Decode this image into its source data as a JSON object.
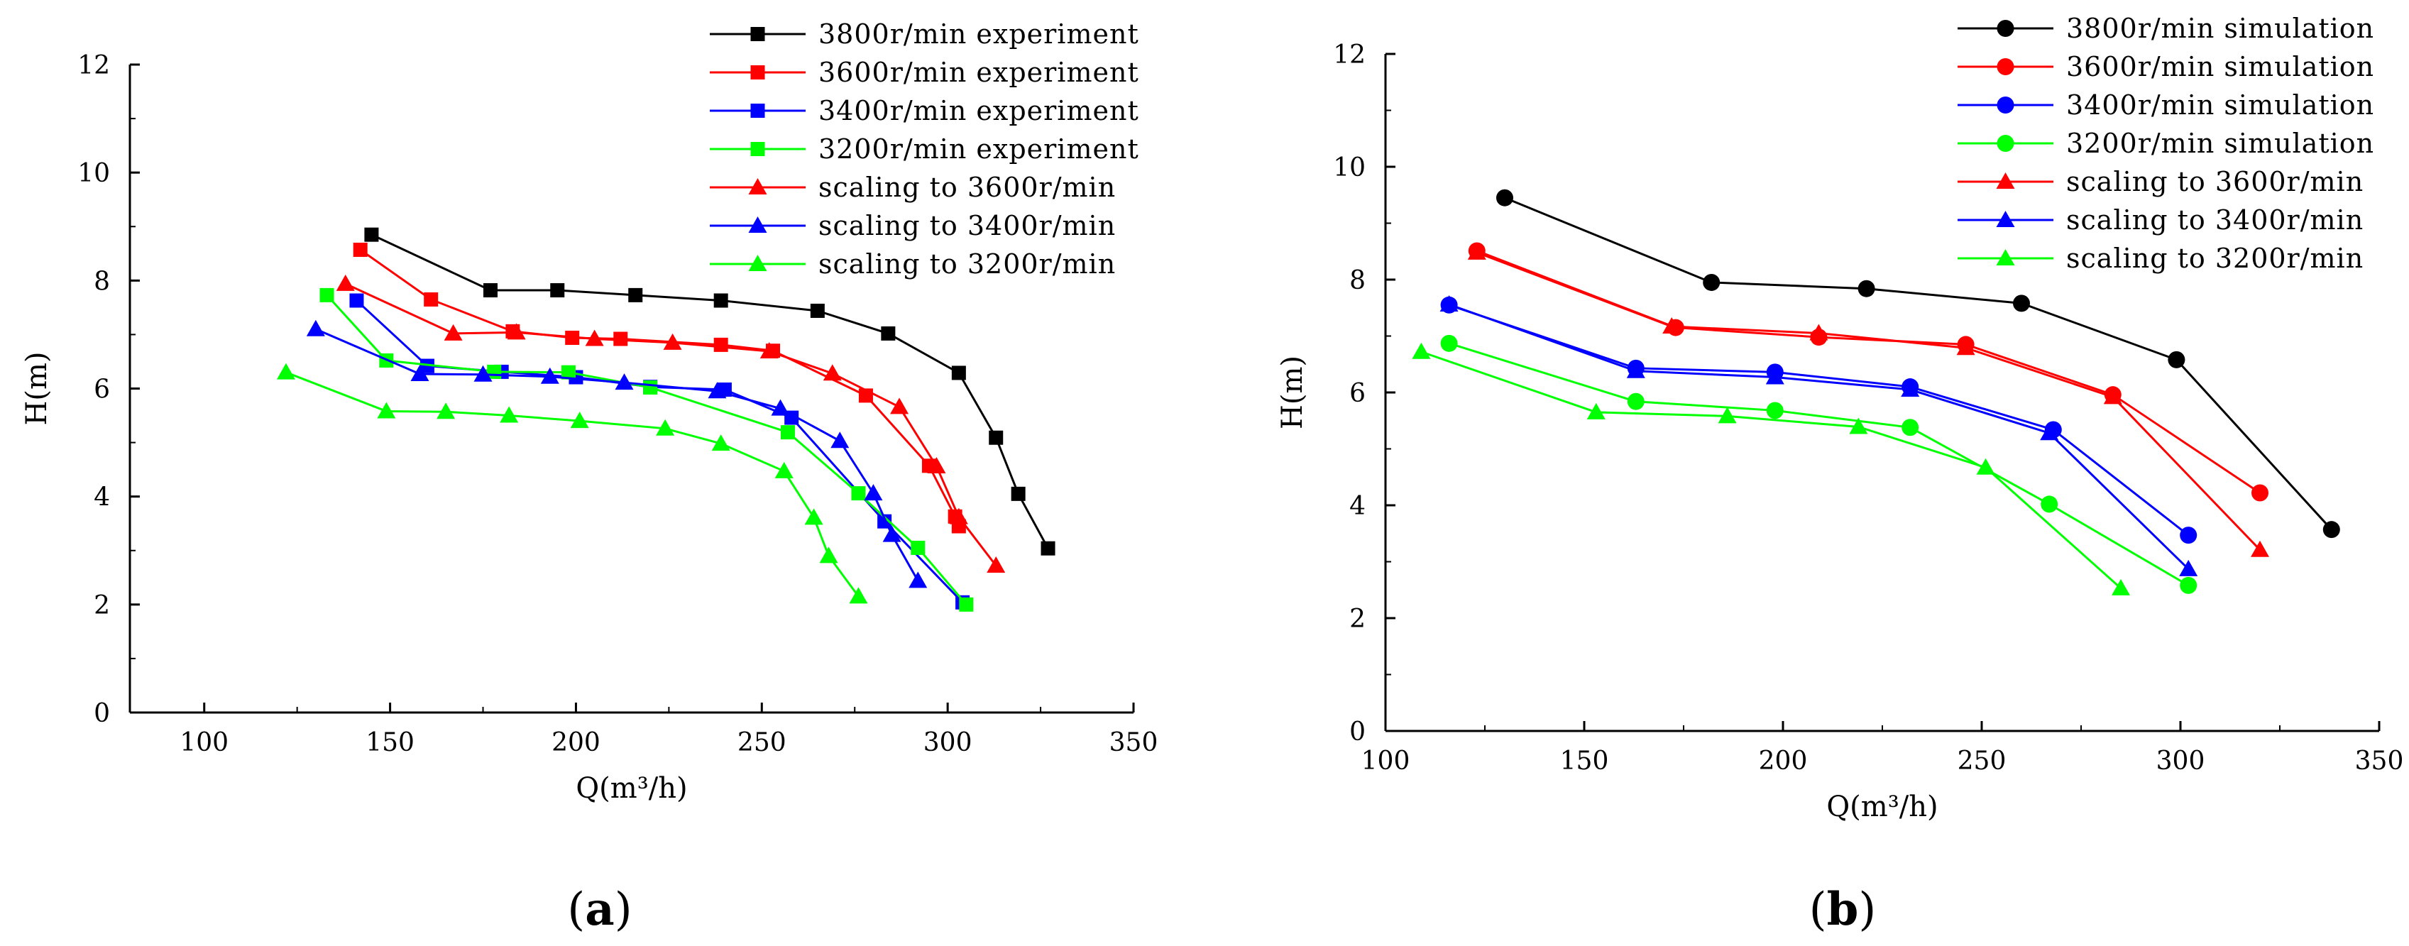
{
  "chart_data": [
    {
      "panel": "(a)",
      "panel_letter": "a",
      "type": "line",
      "xlabel": "Q(m³/h)",
      "ylabel": "H(m)",
      "xlim": [
        80,
        350
      ],
      "ylim": [
        0,
        12
      ],
      "xticks": [
        100,
        150,
        200,
        250,
        300,
        350
      ],
      "yticks": [
        0,
        2,
        4,
        6,
        8,
        10,
        12
      ],
      "legend_position": "top-right",
      "series": [
        {
          "name": "3800r/min experiment",
          "color": "#000000",
          "marker": "square",
          "x": [
            145,
            177,
            195,
            216,
            239,
            265,
            284,
            303,
            313,
            319,
            327
          ],
          "y": [
            8.85,
            7.82,
            7.82,
            7.73,
            7.63,
            7.44,
            7.02,
            6.29,
            5.09,
            4.05,
            3.04
          ]
        },
        {
          "name": "3600r/min experiment",
          "color": "#ff0000",
          "marker": "square",
          "x": [
            142,
            161,
            183,
            199,
            212,
            239,
            253,
            278,
            295,
            302,
            303
          ],
          "y": [
            8.57,
            7.65,
            7.06,
            6.94,
            6.92,
            6.81,
            6.7,
            5.87,
            4.57,
            3.63,
            3.45
          ]
        },
        {
          "name": "3400r/min experiment",
          "color": "#0000ff",
          "marker": "square",
          "x": [
            141,
            160,
            180,
            200,
            220,
            240,
            258,
            283,
            304
          ],
          "y": [
            7.63,
            6.42,
            6.31,
            6.21,
            6.03,
            5.98,
            5.46,
            3.54,
            2.04
          ]
        },
        {
          "name": "3200r/min experiment",
          "color": "#00ff00",
          "marker": "square",
          "x": [
            133,
            149,
            178,
            198,
            220,
            257,
            276,
            292,
            305
          ],
          "y": [
            7.73,
            6.52,
            6.31,
            6.3,
            6.02,
            5.19,
            4.06,
            3.05,
            2.0
          ]
        },
        {
          "name": "scaling to 3600r/min",
          "color": "#ff0000",
          "marker": "triangle",
          "x": [
            138,
            167,
            184,
            205,
            226,
            252,
            269,
            287,
            297,
            303,
            313
          ],
          "y": [
            7.94,
            7.02,
            7.04,
            6.92,
            6.85,
            6.69,
            6.28,
            5.66,
            4.56,
            3.62,
            2.72
          ]
        },
        {
          "name": "scaling to 3400r/min",
          "color": "#0000ff",
          "marker": "triangle",
          "x": [
            130,
            158,
            175,
            193,
            213,
            238,
            255,
            271,
            280,
            285,
            292
          ],
          "y": [
            7.1,
            6.27,
            6.26,
            6.22,
            6.11,
            5.95,
            5.63,
            5.03,
            4.06,
            3.29,
            2.44
          ]
        },
        {
          "name": "scaling to 3200r/min",
          "color": "#00ff00",
          "marker": "triangle",
          "x": [
            122,
            149,
            165,
            182,
            201,
            224,
            239,
            256,
            264,
            268,
            276
          ],
          "y": [
            6.3,
            5.58,
            5.57,
            5.5,
            5.4,
            5.26,
            4.98,
            4.47,
            3.61,
            2.9,
            2.15
          ]
        }
      ]
    },
    {
      "panel": "(b)",
      "panel_letter": "b",
      "type": "line",
      "xlabel": "Q(m³/h)",
      "ylabel": "H(m)",
      "xlim": [
        100,
        350
      ],
      "ylim": [
        0,
        12
      ],
      "xticks": [
        100,
        150,
        200,
        250,
        300,
        350
      ],
      "yticks": [
        0,
        2,
        4,
        6,
        8,
        10,
        12
      ],
      "legend_position": "top-right",
      "series": [
        {
          "name": "3800r/min simulation",
          "color": "#000000",
          "marker": "circle",
          "x": [
            130,
            182,
            221,
            260,
            299,
            338
          ],
          "y": [
            9.45,
            7.95,
            7.84,
            7.58,
            6.58,
            3.57
          ]
        },
        {
          "name": "3600r/min simulation",
          "color": "#ff0000",
          "marker": "circle",
          "x": [
            123,
            173,
            209,
            246,
            283,
            320
          ],
          "y": [
            8.51,
            7.15,
            6.98,
            6.85,
            5.96,
            4.22
          ]
        },
        {
          "name": "3400r/min simulation",
          "color": "#0000ff",
          "marker": "circle",
          "x": [
            116,
            163,
            198,
            232,
            268,
            302
          ],
          "y": [
            7.55,
            6.43,
            6.36,
            6.1,
            5.34,
            3.47
          ]
        },
        {
          "name": "3200r/min simulation",
          "color": "#00ff00",
          "marker": "circle",
          "x": [
            116,
            163,
            198,
            232,
            267,
            302
          ],
          "y": [
            6.87,
            5.84,
            5.68,
            5.38,
            4.02,
            2.58
          ]
        },
        {
          "name": "scaling to 3600r/min",
          "color": "#ff0000",
          "marker": "triangle",
          "x": [
            123,
            172,
            209,
            246,
            283,
            320
          ],
          "y": [
            8.48,
            7.17,
            7.05,
            6.79,
            5.92,
            3.21
          ]
        },
        {
          "name": "scaling to 3400r/min",
          "color": "#0000ff",
          "marker": "triangle",
          "x": [
            116,
            163,
            198,
            232,
            267,
            302
          ],
          "y": [
            7.56,
            6.38,
            6.27,
            6.05,
            5.28,
            2.87
          ]
        },
        {
          "name": "scaling to 3200r/min",
          "color": "#00ff00",
          "marker": "triangle",
          "x": [
            109,
            153,
            186,
            219,
            251,
            285
          ],
          "y": [
            6.72,
            5.65,
            5.58,
            5.39,
            4.67,
            2.53
          ]
        }
      ]
    }
  ]
}
